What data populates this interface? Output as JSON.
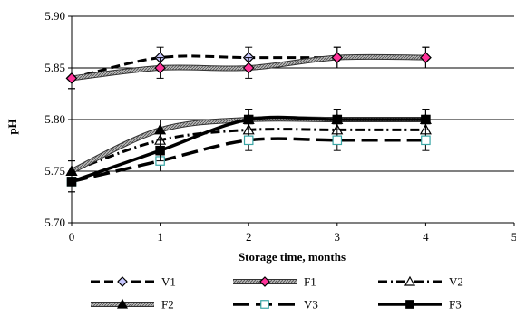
{
  "chart_data": {
    "type": "line",
    "xlabel": "Storage time, months",
    "ylabel": "pH",
    "xlim": [
      0,
      5
    ],
    "ylim": [
      5.7,
      5.9
    ],
    "x_ticks": [
      "0",
      "1",
      "2",
      "3",
      "4",
      "5"
    ],
    "y_ticks": [
      "5.70",
      "5.75",
      "5.80",
      "5.85",
      "5.90"
    ],
    "grid": "horizontal",
    "legend_position": "bottom",
    "x": [
      0,
      1,
      2,
      3,
      4
    ],
    "series": [
      {
        "name": "V1",
        "values": [
          5.84,
          5.86,
          5.86,
          5.86,
          5.86
        ],
        "marker": "diamond",
        "line": "dashed",
        "color": "#000000",
        "marker_fill": "#c8c8ff"
      },
      {
        "name": "F1",
        "values": [
          5.84,
          5.85,
          5.85,
          5.86,
          5.86
        ],
        "marker": "diamond",
        "line": "hatched-thick",
        "color": "#9a9a9a",
        "marker_fill": "#ff3399"
      },
      {
        "name": "V2",
        "values": [
          5.75,
          5.78,
          5.79,
          5.79,
          5.79
        ],
        "marker": "triangle-open",
        "line": "dash-dot",
        "color": "#000000",
        "marker_fill": "#ffffff"
      },
      {
        "name": "F2",
        "values": [
          5.75,
          5.79,
          5.8,
          5.8,
          5.8
        ],
        "marker": "triangle",
        "line": "hatched-thick",
        "color": "#808080",
        "marker_fill": "#000000"
      },
      {
        "name": "V3",
        "values": [
          5.74,
          5.76,
          5.78,
          5.78,
          5.78
        ],
        "marker": "square-open",
        "line": "long-dash",
        "color": "#000000",
        "marker_fill": "#ffffff"
      },
      {
        "name": "F3",
        "values": [
          5.74,
          5.77,
          5.8,
          5.8,
          5.8
        ],
        "marker": "square",
        "line": "solid",
        "color": "#000000",
        "marker_fill": "#000000"
      }
    ],
    "error_bar": 0.01
  }
}
